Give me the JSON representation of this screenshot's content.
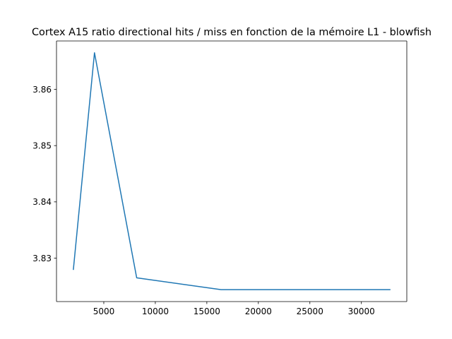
{
  "chart_data": {
    "type": "line",
    "title": "Cortex A15 ratio directional hits / miss en fonction de la mémoire L1 - blowfish",
    "xlabel": "",
    "ylabel": "",
    "x": [
      2048,
      4096,
      8192,
      16384,
      32768
    ],
    "series": [
      {
        "values": [
          3.828,
          3.8665,
          3.8265,
          3.8244,
          3.8244
        ],
        "color": "#1f77b4"
      }
    ],
    "xlim": [
      409.6,
      34406.4
    ],
    "ylim": [
      3.82228,
      3.8686
    ],
    "xticks": [
      5000,
      10000,
      15000,
      20000,
      25000,
      30000
    ],
    "xtick_labels": [
      "5000",
      "10000",
      "15000",
      "20000",
      "25000",
      "30000"
    ],
    "yticks": [
      3.83,
      3.84,
      3.85,
      3.86
    ],
    "ytick_labels": [
      "3.83",
      "3.84",
      "3.85",
      "3.86"
    ],
    "grid": false,
    "legend": "none"
  }
}
